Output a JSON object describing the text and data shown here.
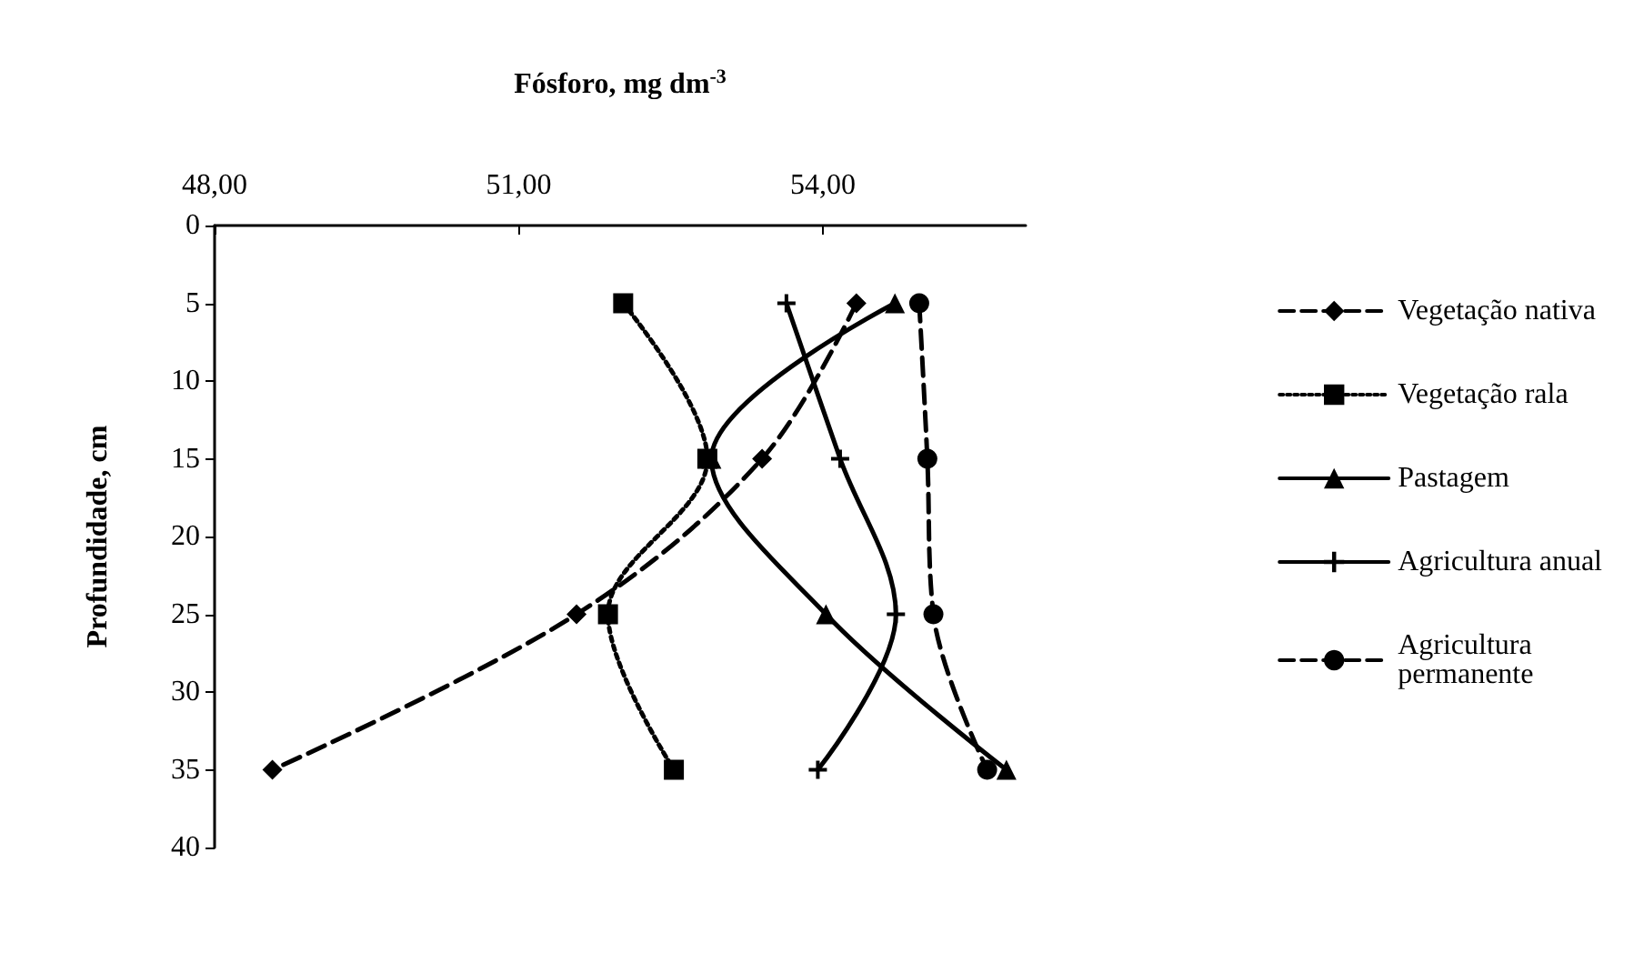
{
  "chart_data": {
    "type": "line",
    "xlabel": "Fósforo, mg dm$^{-3}$",
    "ylabel": "Profundidade, cm",
    "xlim": [
      48,
      56
    ],
    "xticks": [
      {
        "value": 48,
        "label": "48,00"
      },
      {
        "value": 51,
        "label": "51,00"
      },
      {
        "value": 54,
        "label": "54,00"
      }
    ],
    "ylim": [
      40,
      0
    ],
    "yticks": [
      0,
      5,
      10,
      15,
      20,
      25,
      30,
      35,
      40
    ],
    "grid": false,
    "legend": "right",
    "series": [
      {
        "name": "Vegetação nativa",
        "color": "#000000",
        "marker": "diamond",
        "line_style": "dashed",
        "x": [
          54.33,
          53.4,
          51.57,
          48.57
        ],
        "values": [
          5,
          15,
          25,
          35
        ]
      },
      {
        "name": "Vegetação rala",
        "color": "#000000",
        "marker": "square",
        "line_style": "dotted",
        "x": [
          52.03,
          52.86,
          51.88,
          52.53
        ],
        "values": [
          5,
          15,
          25,
          35
        ]
      },
      {
        "name": "Pastagem",
        "color": "#000000",
        "marker": "triangle",
        "line_style": "solid",
        "x": [
          54.71,
          52.9,
          54.03,
          55.81
        ],
        "values": [
          5,
          15,
          25,
          35
        ]
      },
      {
        "name": "Agricultura anual",
        "color": "#000000",
        "marker": "cross",
        "line_style": "solid",
        "x": [
          53.64,
          54.17,
          54.72,
          53.95
        ],
        "values": [
          5,
          15,
          25,
          35
        ]
      },
      {
        "name": "Agricultura permanente",
        "color": "#000000",
        "marker": "circle",
        "line_style": "dashed",
        "x": [
          54.95,
          55.03,
          55.09,
          55.62
        ],
        "values": [
          5,
          15,
          25,
          35
        ]
      }
    ]
  }
}
